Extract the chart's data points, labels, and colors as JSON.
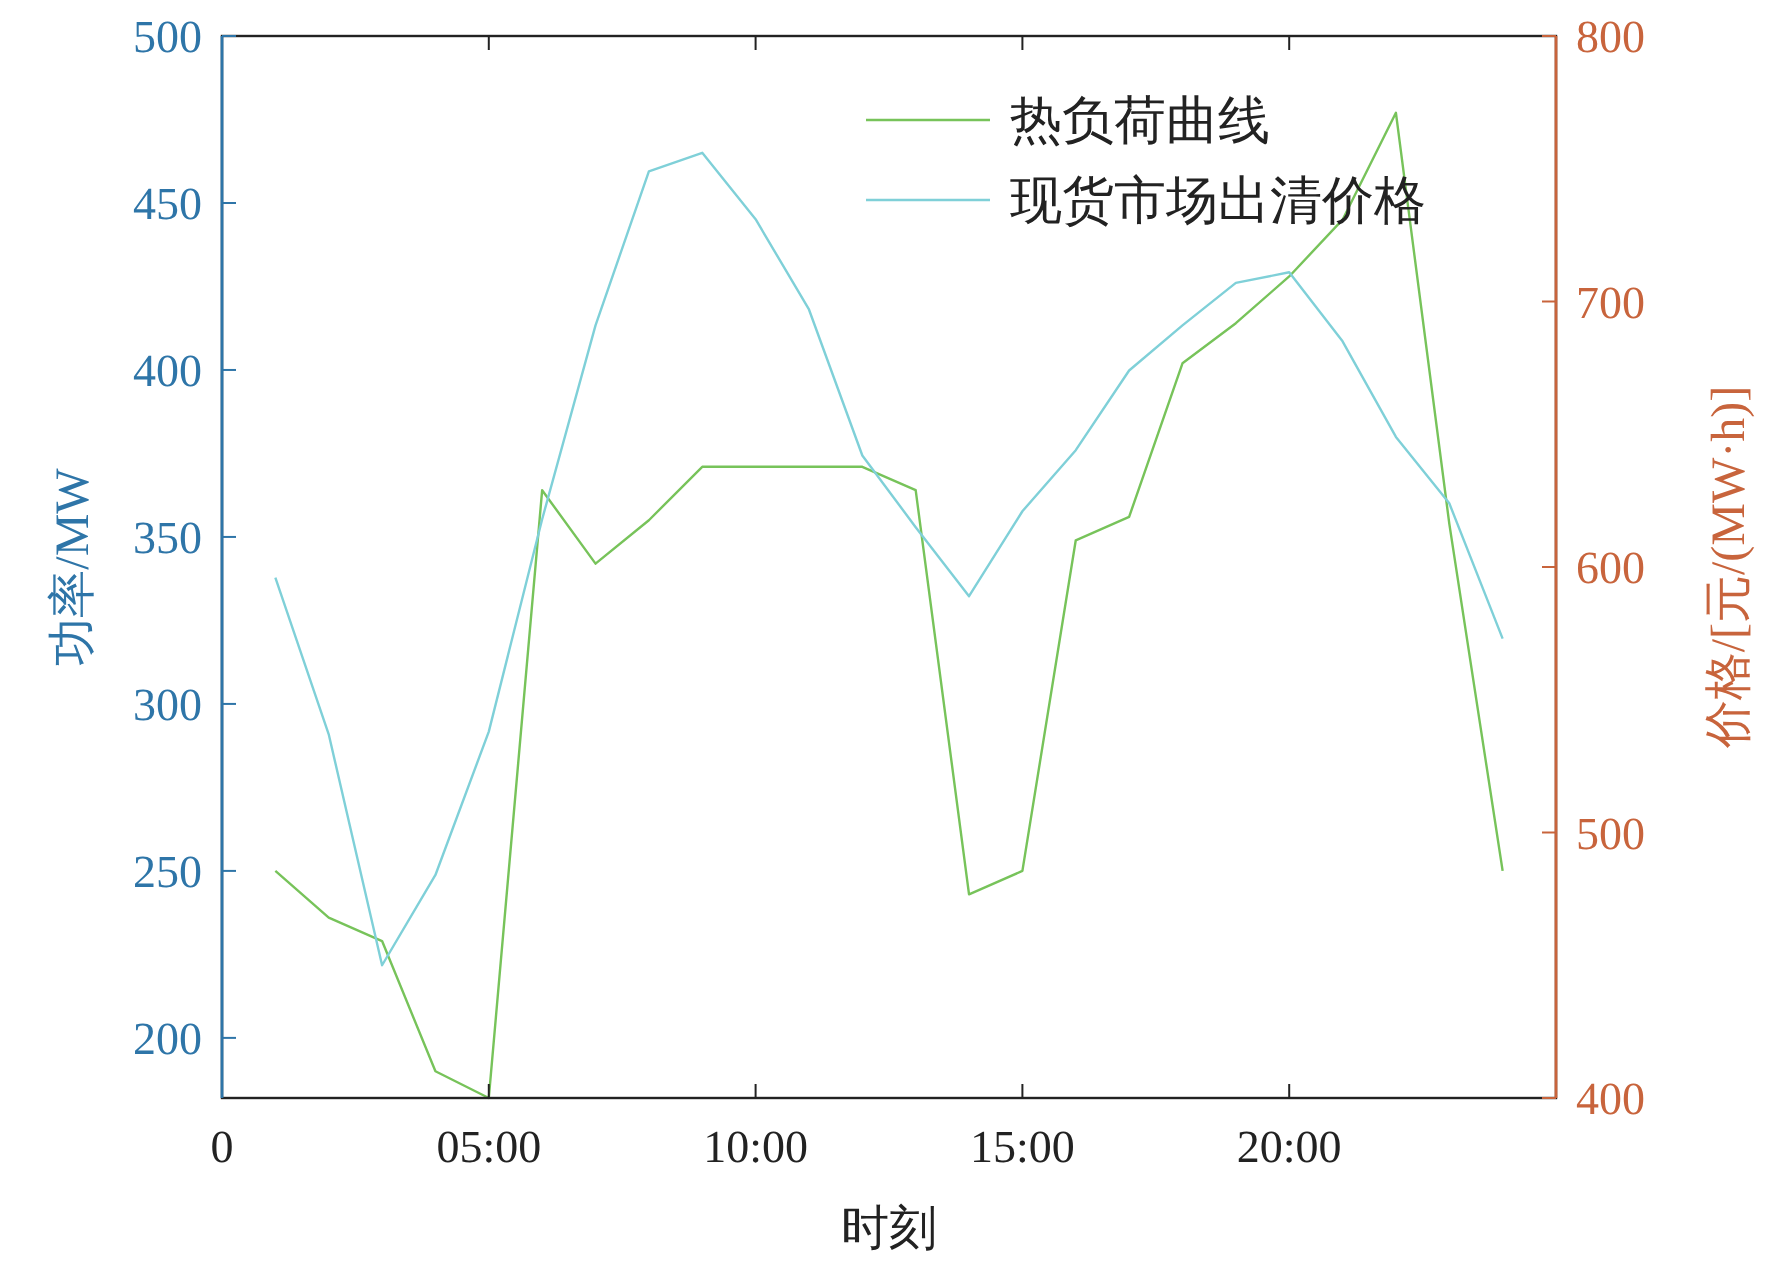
{
  "chart_data": {
    "type": "line",
    "xlabel": "时刻",
    "ylabel": "功率/MW",
    "y2label": "价格/[元/(MW·h)]",
    "xlim": [
      0,
      25
    ],
    "xticks": [
      0,
      {
        "value": 5,
        "label": "05:00"
      },
      {
        "value": 10,
        "label": "10:00"
      },
      {
        "value": 15,
        "label": "15:00"
      },
      {
        "value": 20,
        "label": "20:00"
      }
    ],
    "ylim": [
      182,
      500
    ],
    "yticks": [
      200,
      250,
      300,
      350,
      400,
      450,
      500
    ],
    "y2lim": [
      400,
      800
    ],
    "y2ticks": [
      400,
      500,
      600,
      700,
      800
    ],
    "grid": false,
    "legend": "top right",
    "marker": "none",
    "line_style": "solid",
    "x": [
      1,
      2,
      3,
      4,
      5,
      6,
      7,
      8,
      9,
      10,
      11,
      12,
      13,
      14,
      15,
      16,
      17,
      18,
      19,
      20,
      21,
      22,
      23,
      24
    ],
    "series": [
      {
        "name": "热负荷曲线",
        "color": "#77c35a",
        "values": [
          250,
          236,
          229,
          190,
          182,
          364,
          342,
          355,
          371,
          371,
          371,
          371,
          364,
          243,
          250,
          349,
          356,
          402,
          414,
          428,
          445,
          477,
          354,
          250
        ]
      },
      {
        "name": "现货市场出清价格",
        "color": "#7fd0d8",
        "axis": "y2",
        "values": [
          596,
          537,
          450,
          484,
          538,
          618,
          691,
          749,
          756,
          731,
          697,
          642,
          615,
          589,
          621,
          644,
          674,
          691,
          707,
          711,
          685,
          649,
          624,
          573
        ]
      }
    ]
  }
}
